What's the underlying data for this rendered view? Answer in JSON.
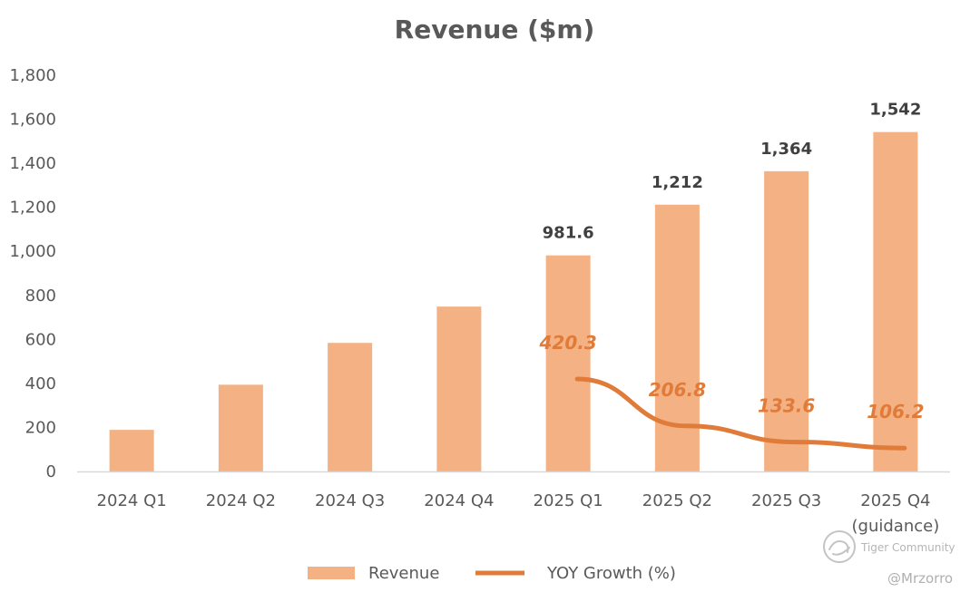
{
  "chart_data": {
    "type": "bar",
    "title": "Revenue ($m)",
    "categories": [
      "2024 Q1",
      "2024 Q2",
      "2024 Q3",
      "2024 Q4",
      "2025 Q1",
      "2025 Q2",
      "2025 Q3",
      "2025 Q4"
    ],
    "category_sublabels": [
      "",
      "",
      "",
      "",
      "",
      "",
      "",
      "(guidance)"
    ],
    "ylim": [
      0,
      1800
    ],
    "yticks": [
      0,
      200,
      400,
      600,
      800,
      1000,
      1200,
      1400,
      1600,
      1800
    ],
    "ytick_labels": [
      "0",
      "200",
      "400",
      "600",
      "800",
      "1,000",
      "1,200",
      "1,400",
      "1,600",
      "1,800"
    ],
    "series": [
      {
        "name": "Revenue",
        "type": "bar",
        "color": "#F4B183",
        "values": [
          189,
          394,
          584,
          749,
          981.6,
          1212,
          1364,
          1542
        ],
        "data_labels": [
          "",
          "",
          "",
          "",
          "981.6",
          "1,212",
          "1,364",
          "1,542"
        ]
      },
      {
        "name": "YOY Growth (%)",
        "type": "line",
        "color": "#E07B39",
        "values": [
          null,
          null,
          null,
          null,
          420.3,
          206.8,
          133.6,
          106.2
        ],
        "data_labels": [
          "",
          "",
          "",
          "",
          "420.3",
          "206.8",
          "133.6",
          "106.2"
        ]
      }
    ],
    "legend_position": "bottom",
    "grid": false
  },
  "watermark": {
    "brand": "Tiger Community",
    "handle": "@Mrzorro"
  },
  "colors": {
    "text": "#595959",
    "axis": "#d9d9d9",
    "bar": "#F4B183",
    "line": "#E07B39"
  }
}
